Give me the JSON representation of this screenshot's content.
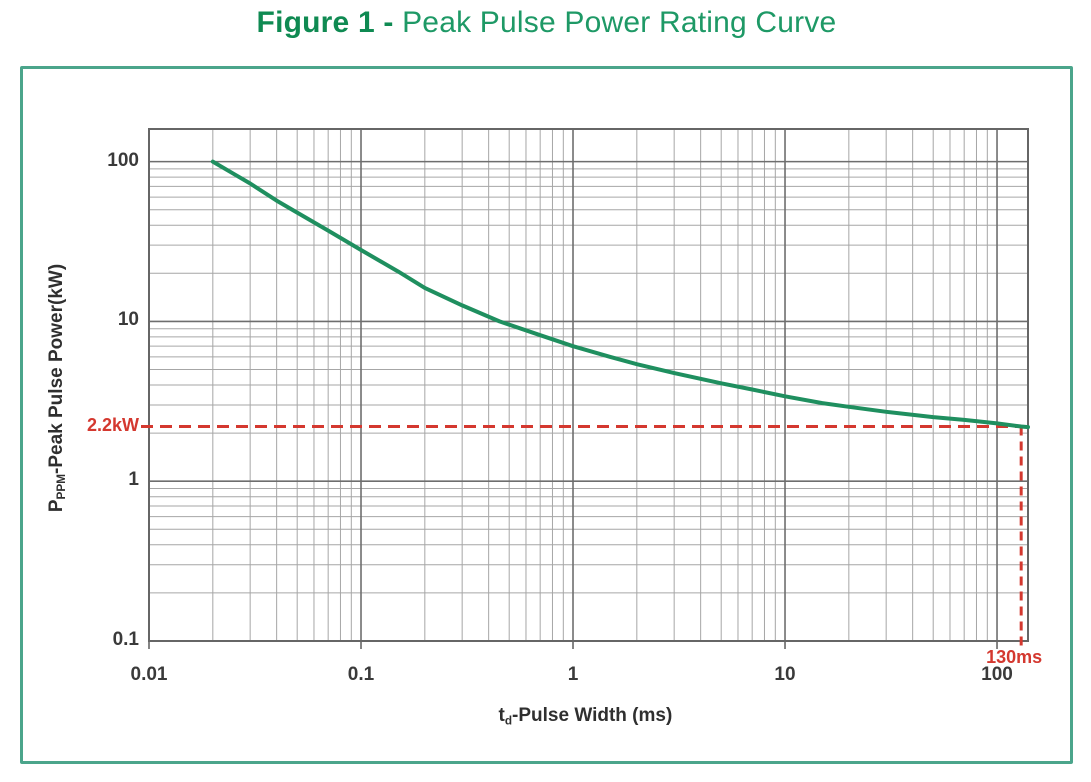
{
  "figure": {
    "title_bold": "Figure 1 -",
    "title_rest": " Peak Pulse Power Rating Curve"
  },
  "colors": {
    "title_bold_green": "#0F8A52",
    "title_rest_green": "#1E9966",
    "box_border_green": "#4BA58B",
    "curve_green": "#1F8F5F",
    "marker_red": "#D4382F",
    "grid_minor": "#A6A6A6",
    "grid_major": "#6E6E6E",
    "frame": "#666666",
    "tick_text": "#3A3A3A"
  },
  "chart_data": {
    "type": "line",
    "title": "Figure 1 - Peak Pulse Power Rating Curve",
    "xlabel": "td-Pulse Width (ms)",
    "ylabel": "PPPM-Peak Pulse Power(kW)",
    "x_axis": {
      "label_prefix": "t",
      "label_sub": "d",
      "label_rest": "-Pulse Width (ms)",
      "scale": "log",
      "min": 0.01,
      "max": 140,
      "ticks": [
        {
          "v": 0.01,
          "label": "0.01"
        },
        {
          "v": 0.1,
          "label": "0.1"
        },
        {
          "v": 1,
          "label": "1"
        },
        {
          "v": 10,
          "label": "10"
        },
        {
          "v": 100,
          "label": "100"
        }
      ]
    },
    "y_axis": {
      "label_prefix": "P",
      "label_sub": "PPM",
      "label_rest": "-Peak Pulse Power(kW)",
      "scale": "log",
      "min": 0.1,
      "max": 160,
      "ticks": [
        {
          "v": 100,
          "label": "100"
        },
        {
          "v": 10,
          "label": "10"
        },
        {
          "v": 1,
          "label": "1"
        },
        {
          "v": 0.1,
          "label": "0.1"
        }
      ]
    },
    "grid": {
      "minor": true,
      "major": true,
      "style": "full log-log grid"
    },
    "legend": "none",
    "series": [
      {
        "name": "peak-pulse-power-rating-curve",
        "color": "#1F8F5F",
        "points": [
          [
            0.02,
            100
          ],
          [
            0.025,
            84
          ],
          [
            0.03,
            73
          ],
          [
            0.04,
            57
          ],
          [
            0.05,
            48
          ],
          [
            0.07,
            37
          ],
          [
            0.1,
            28
          ],
          [
            0.15,
            20.5
          ],
          [
            0.2,
            16.2
          ],
          [
            0.3,
            12.6
          ],
          [
            0.45,
            10
          ],
          [
            0.7,
            8.2
          ],
          [
            1,
            7.0
          ],
          [
            1.5,
            6.0
          ],
          [
            2,
            5.4
          ],
          [
            3,
            4.75
          ],
          [
            5,
            4.1
          ],
          [
            7,
            3.75
          ],
          [
            10,
            3.4
          ],
          [
            15,
            3.08
          ],
          [
            20,
            2.92
          ],
          [
            30,
            2.72
          ],
          [
            50,
            2.52
          ],
          [
            70,
            2.42
          ],
          [
            100,
            2.3
          ],
          [
            130,
            2.2
          ],
          [
            140,
            2.18
          ]
        ]
      }
    ],
    "markers": {
      "power_kw": 2.2,
      "power_label": "2.2kW",
      "pulse_ms": 130,
      "pulse_label": "130ms",
      "color": "#D4382F"
    }
  }
}
